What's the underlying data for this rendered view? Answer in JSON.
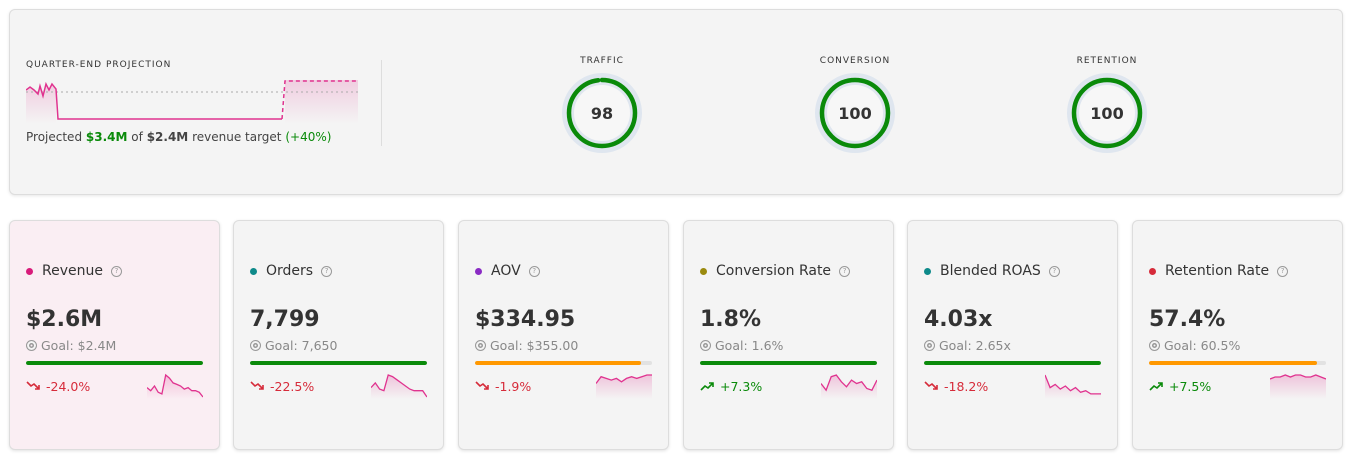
{
  "projection": {
    "title": "QUARTER-END PROJECTION",
    "prefix": "Projected",
    "projected": "$3.4M",
    "of": "of",
    "target": "$2.4M",
    "suffix": "revenue target",
    "pct": "(+40%)"
  },
  "gauges": [
    {
      "label": "TRAFFIC",
      "value": 98
    },
    {
      "label": "CONVERSION",
      "value": 100
    },
    {
      "label": "RETENTION",
      "value": 100
    }
  ],
  "colors": {
    "green": "#0a8a0a",
    "red": "#d62b3a",
    "orange": "#ff9800",
    "pink": "#e0338f"
  },
  "cards": [
    {
      "label": "Revenue",
      "dot": "#d81b7a",
      "value": "$2.6M",
      "goal": "Goal: $2.4M",
      "progress": 100,
      "bar": "#0a8a0a",
      "delta": "-24.0%",
      "dir": "down",
      "spark": [
        6,
        4,
        7,
        3,
        2,
        14,
        12,
        9,
        8,
        7,
        5,
        6,
        4,
        4,
        3,
        0
      ],
      "active": true
    },
    {
      "label": "Orders",
      "dot": "#0e8a8a",
      "value": "7,799",
      "goal": "Goal: 7,650",
      "progress": 100,
      "bar": "#0a8a0a",
      "delta": "-22.5%",
      "dir": "down",
      "spark": [
        6,
        9,
        5,
        4,
        14,
        13,
        11,
        9,
        7,
        5,
        4,
        4,
        4,
        0
      ]
    },
    {
      "label": "AOV",
      "dot": "#8a2bc4",
      "value": "$334.95",
      "goal": "Goal: $355.00",
      "progress": 94,
      "bar": "#ff9800",
      "delta": "-1.9%",
      "dir": "down",
      "spark": [
        8,
        12,
        11,
        10,
        11,
        9,
        11,
        12,
        11,
        12,
        13,
        13
      ]
    },
    {
      "label": "Conversion Rate",
      "dot": "#9a8a0e",
      "value": "1.8%",
      "goal": "Goal: 1.6%",
      "progress": 100,
      "bar": "#0a8a0a",
      "delta": "+7.3%",
      "dir": "up",
      "spark": [
        8,
        4,
        12,
        13,
        9,
        6,
        10,
        8,
        9,
        5,
        4,
        10
      ]
    },
    {
      "label": "Blended ROAS",
      "dot": "#0e8a8a",
      "value": "4.03x",
      "goal": "Goal: 2.65x",
      "progress": 100,
      "bar": "#0a8a0a",
      "delta": "-18.2%",
      "dir": "down",
      "spark": [
        14,
        6,
        8,
        5,
        7,
        4,
        6,
        3,
        4,
        2,
        2,
        2
      ]
    },
    {
      "label": "Retention Rate",
      "dot": "#d62b3a",
      "value": "57.4%",
      "goal": "Goal: 60.5%",
      "progress": 95,
      "bar": "#ff9800",
      "delta": "+7.5%",
      "dir": "up",
      "spark": [
        9,
        10,
        10,
        11,
        10,
        11,
        11,
        10,
        10,
        11,
        10,
        9
      ]
    }
  ]
}
